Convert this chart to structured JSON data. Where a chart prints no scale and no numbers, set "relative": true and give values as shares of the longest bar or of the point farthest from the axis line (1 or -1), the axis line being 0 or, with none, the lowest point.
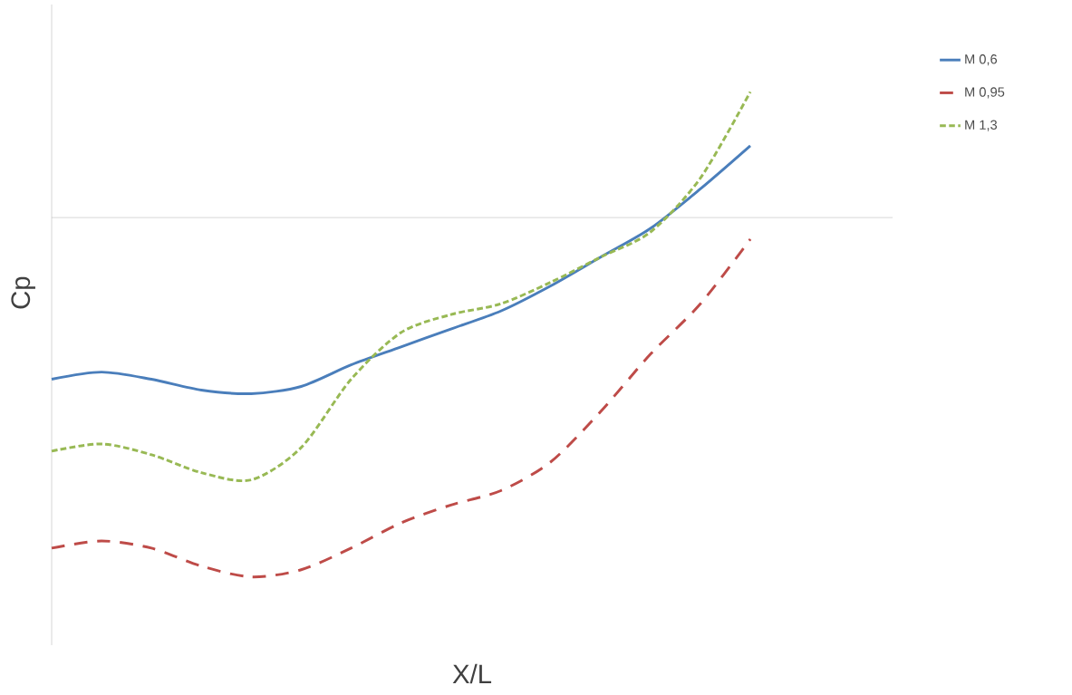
{
  "chart_data": {
    "type": "line",
    "relative": true,
    "xlabel": "X/L",
    "ylabel": "Cp",
    "legend": "right",
    "marker": "none",
    "categories": [
      null,
      null,
      null,
      null,
      null,
      null,
      null,
      null,
      null,
      null,
      null,
      null,
      null,
      null,
      null
    ],
    "series": [
      {
        "name": "M 0,6",
        "color": "#4a7ebb",
        "line_style": "solid",
        "values": [
          -0.45,
          -0.43,
          -0.45,
          -0.48,
          -0.49,
          -0.47,
          -0.41,
          -0.36,
          -0.31,
          -0.26,
          -0.19,
          -0.11,
          -0.03,
          0.08,
          0.2
        ]
      },
      {
        "name": "M 0,95",
        "color": "#be4b48",
        "line_style": "dashed",
        "values": [
          -0.92,
          -0.9,
          -0.92,
          -0.97,
          -1,
          -0.98,
          -0.92,
          -0.85,
          -0.8,
          -0.76,
          -0.68,
          -0.54,
          -0.38,
          -0.24,
          -0.06
        ]
      },
      {
        "name": "M 1,3",
        "color": "#98b954",
        "line_style": "dotted",
        "values": [
          -0.65,
          -0.63,
          -0.66,
          -0.71,
          -0.73,
          -0.64,
          -0.45,
          -0.32,
          -0.27,
          -0.24,
          -0.18,
          -0.11,
          -0.04,
          0.11,
          0.35
        ]
      }
    ]
  }
}
